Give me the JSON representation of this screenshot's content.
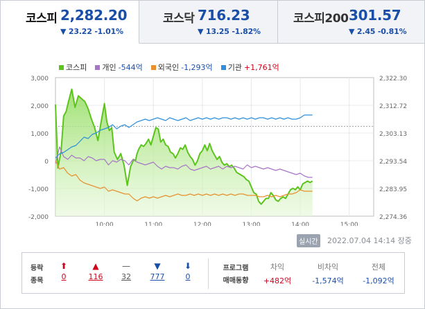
{
  "tabs": [
    {
      "name": "코스피",
      "price": "2,282.20",
      "change": "▼ 23.22 -1.01%",
      "active": true
    },
    {
      "name": "코스닥",
      "price": "716.23",
      "change": "▼ 13.25 -1.82%",
      "active": false
    },
    {
      "name": "코스피200",
      "price": "301.57",
      "change": "▼ 2.45 -0.81%",
      "active": false
    }
  ],
  "legend": [
    {
      "label": "코스피",
      "value": "",
      "color": "#5cc41c"
    },
    {
      "label": "개인",
      "value": "-544억",
      "color": "#a874c8",
      "sign": "neg"
    },
    {
      "label": "외국인",
      "value": "-1,293억",
      "color": "#e8902e",
      "sign": "neg"
    },
    {
      "label": "기관",
      "value": "+1,761억",
      "color": "#2f8fdc",
      "sign": "pos"
    }
  ],
  "chart_data": {
    "type": "line",
    "x_ticks": [
      "10:00",
      "11:00",
      "12:00",
      "13:00",
      "14:00",
      "15:00"
    ],
    "left_axis": {
      "ticks": [
        "3,000",
        "2,000",
        "1,000",
        "0",
        "-1,000",
        "-2,000"
      ],
      "range": [
        -2000,
        3000
      ]
    },
    "right_axis": {
      "ticks": [
        "2,322.30",
        "2,312.72",
        "2,303.13",
        "2,293.54",
        "2,283.95",
        "2,274.36"
      ],
      "range": [
        2274.36,
        2322.3
      ]
    },
    "x_range_minutes": [
      540,
      930
    ],
    "reference_line": 2305.43,
    "series": [
      {
        "name": "코스피",
        "axis": "right",
        "color": "#5cc41c",
        "fill": true,
        "x": [
          540,
          543,
          547,
          550,
          553,
          556,
          560,
          564,
          568,
          572,
          576,
          580,
          584,
          588,
          592,
          596,
          600,
          603,
          606,
          609,
          612,
          616,
          620,
          624,
          628,
          632,
          636,
          638,
          640,
          642,
          645,
          648,
          651,
          654,
          657,
          660,
          663,
          666,
          669,
          672,
          675,
          678,
          681,
          684,
          687,
          690,
          693,
          696,
          699,
          702,
          705,
          708,
          711,
          714,
          717,
          720,
          723,
          726,
          729,
          732,
          735,
          738,
          741,
          744,
          747,
          750,
          753,
          756,
          759,
          762,
          765,
          768,
          771,
          774,
          777,
          780,
          783,
          786,
          789,
          792,
          795,
          798,
          801,
          804,
          807,
          810,
          813,
          816,
          819,
          822,
          825,
          828,
          831,
          834,
          837,
          840,
          843,
          846,
          849,
          852,
          855
        ],
        "y": [
          2313.0,
          2291.0,
          2297.0,
          2309.0,
          2310.5,
          2314.0,
          2318.3,
          2312.0,
          2316.0,
          2315.0,
          2314.0,
          2311.5,
          2308.0,
          2305.0,
          2300.5,
          2307.0,
          2313.3,
          2307.0,
          2304.0,
          2305.0,
          2296.5,
          2294.0,
          2296.0,
          2292.0,
          2285.0,
          2291.5,
          2294.0,
          2293.5,
          2296.0,
          2297.5,
          2299.0,
          2298.5,
          2299.5,
          2301.0,
          2299.0,
          2302.0,
          2305.0,
          2304.5,
          2300.0,
          2301.0,
          2299.0,
          2298.5,
          2296.5,
          2296.0,
          2294.5,
          2296.0,
          2298.0,
          2297.5,
          2299.0,
          2296.5,
          2295.0,
          2294.0,
          2292.0,
          2293.5,
          2296.0,
          2297.0,
          2299.0,
          2297.0,
          2299.5,
          2297.0,
          2295.5,
          2294.0,
          2295.0,
          2293.0,
          2292.0,
          2292.5,
          2291.5,
          2292.0,
          2291.0,
          2289.5,
          2289.0,
          2288.5,
          2288.0,
          2287.0,
          2286.5,
          2284.5,
          2282.5,
          2282.0,
          2279.5,
          2278.5,
          2279.5,
          2280.5,
          2280.5,
          2282.5,
          2281.5,
          2280.0,
          2279.5,
          2280.5,
          2281.0,
          2280.5,
          2282.0,
          2283.5,
          2284.0,
          2283.5,
          2284.5,
          2283.5,
          2285.5,
          2286.0,
          2286.5,
          2286.0,
          2286.5
        ]
      },
      {
        "name": "개인",
        "axis": "left",
        "color": "#a874c8",
        "fill": false,
        "x": [
          540,
          545,
          550,
          555,
          560,
          565,
          570,
          575,
          580,
          585,
          590,
          595,
          600,
          605,
          610,
          615,
          620,
          625,
          630,
          635,
          640,
          645,
          650,
          655,
          660,
          665,
          670,
          675,
          680,
          685,
          690,
          695,
          700,
          705,
          710,
          715,
          720,
          725,
          730,
          735,
          740,
          745,
          750,
          755,
          760,
          765,
          770,
          775,
          780,
          785,
          790,
          795,
          800,
          805,
          810,
          815,
          820,
          825,
          830,
          835,
          840,
          845,
          850,
          855
        ],
        "y": [
          -100,
          500,
          150,
          50,
          200,
          100,
          100,
          0,
          150,
          100,
          0,
          50,
          50,
          -150,
          0,
          -50,
          50,
          0,
          -150,
          50,
          -50,
          -100,
          -150,
          -100,
          -50,
          -200,
          -300,
          -200,
          -250,
          -250,
          -300,
          -200,
          -150,
          -300,
          -350,
          -300,
          -250,
          -200,
          -300,
          -250,
          -200,
          -300,
          -200,
          -250,
          -200,
          -250,
          -300,
          -150,
          -250,
          -200,
          -250,
          -300,
          -250,
          -300,
          -350,
          -300,
          -350,
          -400,
          -450,
          -500,
          -450,
          -550,
          -600,
          -600
        ]
      },
      {
        "name": "외국인",
        "axis": "left",
        "color": "#e8902e",
        "fill": false,
        "x": [
          540,
          545,
          550,
          555,
          560,
          565,
          570,
          575,
          580,
          585,
          590,
          595,
          600,
          605,
          610,
          615,
          620,
          625,
          630,
          635,
          640,
          645,
          650,
          655,
          660,
          665,
          670,
          675,
          680,
          685,
          690,
          695,
          700,
          705,
          710,
          715,
          720,
          725,
          730,
          735,
          740,
          745,
          750,
          755,
          760,
          765,
          770,
          775,
          780,
          785,
          790,
          795,
          800,
          805,
          810,
          815,
          820,
          825,
          830,
          835,
          840,
          845,
          850,
          855
        ],
        "y": [
          0,
          -300,
          -250,
          -450,
          -550,
          -500,
          -700,
          -800,
          -850,
          -900,
          -950,
          -1000,
          -950,
          -1100,
          -1050,
          -1100,
          -1150,
          -1200,
          -1200,
          -1350,
          -1450,
          -1350,
          -1300,
          -1350,
          -1300,
          -1350,
          -1300,
          -1250,
          -1300,
          -1250,
          -1200,
          -1250,
          -1250,
          -1200,
          -1250,
          -1200,
          -1250,
          -1200,
          -1250,
          -1200,
          -1250,
          -1200,
          -1250,
          -1200,
          -1250,
          -1200,
          -1200,
          -1250,
          -1250,
          -1250,
          -1300,
          -1300,
          -1250,
          -1300,
          -1250,
          -1300,
          -1250,
          -1200,
          -1200,
          -1150,
          -1050,
          -1100,
          -1100,
          -1100
        ]
      },
      {
        "name": "기관",
        "axis": "left",
        "color": "#2f8fdc",
        "fill": false,
        "x": [
          540,
          545,
          550,
          555,
          560,
          565,
          570,
          575,
          580,
          585,
          590,
          595,
          600,
          605,
          610,
          615,
          620,
          625,
          630,
          635,
          640,
          645,
          650,
          655,
          660,
          665,
          670,
          675,
          680,
          685,
          690,
          695,
          700,
          705,
          710,
          715,
          720,
          725,
          730,
          735,
          740,
          745,
          750,
          755,
          760,
          765,
          770,
          775,
          780,
          785,
          790,
          795,
          800,
          805,
          810,
          815,
          820,
          825,
          830,
          835,
          840,
          845,
          850,
          855
        ],
        "y": [
          100,
          250,
          300,
          400,
          500,
          550,
          700,
          850,
          800,
          950,
          1000,
          1100,
          1150,
          1200,
          1300,
          1150,
          1250,
          1300,
          1200,
          1300,
          1400,
          1450,
          1500,
          1450,
          1500,
          1550,
          1500,
          1450,
          1550,
          1500,
          1450,
          1500,
          1550,
          1450,
          1500,
          1550,
          1500,
          1550,
          1500,
          1550,
          1500,
          1550,
          1550,
          1500,
          1550,
          1500,
          1550,
          1500,
          1550,
          1500,
          1550,
          1550,
          1500,
          1550,
          1500,
          1550,
          1500,
          1550,
          1500,
          1500,
          1550,
          1650,
          1650,
          1650
        ]
      }
    ]
  },
  "realtime_badge": "실시간",
  "datetime": "2022.07.04 14:14 장중",
  "breadth": {
    "label_line1": "등락",
    "label_line2": "종목",
    "items": [
      {
        "arrow": "⬆",
        "count": "0",
        "color": "#d0021b"
      },
      {
        "arrow": "▲",
        "count": "116",
        "color": "#d0021b"
      },
      {
        "arrow": "—",
        "count": "32",
        "color": "#555555"
      },
      {
        "arrow": "▼",
        "count": "777",
        "color": "#1a4fa8"
      },
      {
        "arrow": "⬇",
        "count": "0",
        "color": "#1a4fa8"
      }
    ]
  },
  "program": {
    "label_line1": "프로그램",
    "label_line2": "매매동향",
    "cols": [
      {
        "header": "차익",
        "value": "+482억",
        "sign": "pos"
      },
      {
        "header": "비차익",
        "value": "-1,574억",
        "sign": "neg"
      },
      {
        "header": "전체",
        "value": "-1,092억",
        "sign": "neg"
      }
    ]
  }
}
